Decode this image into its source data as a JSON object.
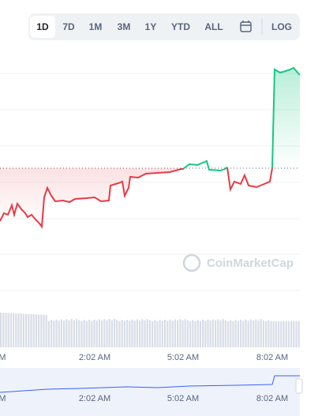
{
  "toolbar": {
    "ranges": [
      "1D",
      "7D",
      "1M",
      "3M",
      "1Y",
      "YTD",
      "ALL"
    ],
    "log": "LOG"
  },
  "x_labels": [
    "M",
    "2:02 AM",
    "5:02 AM",
    "8:02 AM"
  ],
  "navigator_labels": [
    "M",
    "2:02 AM",
    "5:02 AM",
    "8:02 AM"
  ],
  "watermark": "CoinMarketCap"
}
